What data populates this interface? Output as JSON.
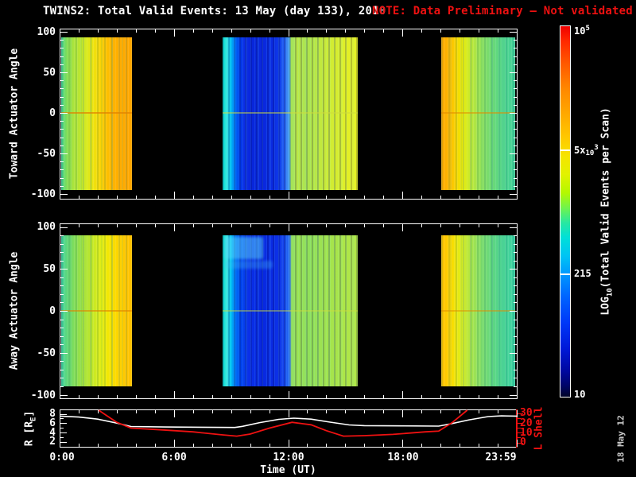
{
  "title": {
    "main": "TWINS2: Total Valid Events: 13 May (day 133), 2010",
    "note": "NOTE: Data Preliminary – Not validated",
    "note_color": "#ee1111"
  },
  "xaxis": {
    "label": "Time (UT)",
    "ticks": [
      "0:00",
      "6:00",
      "12:00",
      "18:00",
      "23:59"
    ],
    "range_hours": [
      0,
      24
    ]
  },
  "panels": {
    "toward": {
      "ylabel": "Toward Actuator Angle",
      "yticks": [
        "100",
        "50",
        "0",
        "-50",
        "-100"
      ]
    },
    "away": {
      "ylabel": "Away Actuator Angle",
      "yticks": [
        "100",
        "50",
        "0",
        "-50",
        "-100"
      ]
    },
    "orbit": {
      "left_label_pre": "R [R",
      "left_label_sub": "E",
      "left_label_post": "]",
      "left_ticks": [
        "8",
        "6",
        "4",
        "2"
      ],
      "right_label": "L Shell",
      "right_ticks": [
        "30",
        "20",
        "10",
        "0"
      ],
      "right_color": "#ee1111"
    }
  },
  "colorbar": {
    "label_pre": "LOG",
    "label_sub": "10",
    "label_post": "(Total Valid Events per Scan)",
    "tick_top_base": "10",
    "tick_top_sup": "5",
    "tick_upper_pre": "5x",
    "tick_upper_small": "10",
    "tick_upper_sup": "3",
    "tick_lower": "215",
    "tick_bottom": "10",
    "value_ticks": [
      100000,
      5000,
      215,
      10
    ],
    "dash_fracs": [
      0.333,
      0.667
    ],
    "gradient": [
      {
        "p": 0,
        "c": "#f00000"
      },
      {
        "p": 4,
        "c": "#ff2800"
      },
      {
        "p": 10,
        "c": "#ff5800"
      },
      {
        "p": 17,
        "c": "#ff8800"
      },
      {
        "p": 24,
        "c": "#ffaa00"
      },
      {
        "p": 30,
        "c": "#ffc800"
      },
      {
        "p": 35,
        "c": "#f6e400"
      },
      {
        "p": 40,
        "c": "#e2f200"
      },
      {
        "p": 45,
        "c": "#b4f800"
      },
      {
        "p": 49,
        "c": "#70f44c"
      },
      {
        "p": 53,
        "c": "#28e8a0"
      },
      {
        "p": 57,
        "c": "#00e0d8"
      },
      {
        "p": 62,
        "c": "#00c4f4"
      },
      {
        "p": 67,
        "c": "#0098ff"
      },
      {
        "p": 73,
        "c": "#0064ff"
      },
      {
        "p": 80,
        "c": "#0038f8"
      },
      {
        "p": 87,
        "c": "#0018d8"
      },
      {
        "p": 93,
        "c": "#0008a0"
      },
      {
        "p": 97,
        "c": "#000468"
      },
      {
        "p": 100,
        "c": "#000428"
      }
    ]
  },
  "datestamp": "18 May 12",
  "chart_data": [
    {
      "type": "heatmap",
      "panel": "toward",
      "ylabel": "Toward Actuator Angle",
      "y_range": [
        -100,
        100
      ],
      "data_y_range": [
        -90,
        90
      ],
      "x_unit": "hours UT",
      "blocks": [
        {
          "t_start": 0.1,
          "t_end": 3.8,
          "texture": "warm",
          "zero_color": "rgba(225,130,0,0.7)",
          "gradient": [
            {
              "p": 0,
              "c": "#3ed49c"
            },
            {
              "p": 4,
              "c": "#66da6e"
            },
            {
              "p": 10,
              "c": "#8ee04e"
            },
            {
              "p": 18,
              "c": "#ace43a"
            },
            {
              "p": 28,
              "c": "#bfe72e"
            },
            {
              "p": 36,
              "c": "#d9ea1e"
            },
            {
              "p": 44,
              "c": "#ece512"
            },
            {
              "p": 52,
              "c": "#f6da06"
            },
            {
              "p": 60,
              "c": "#fcc900"
            },
            {
              "p": 70,
              "c": "#ffb800"
            },
            {
              "p": 82,
              "c": "#ffac00"
            },
            {
              "p": 100,
              "c": "#ffa600"
            }
          ]
        },
        {
          "t_start": 8.55,
          "t_end": 15.65,
          "texture": "cold",
          "zero_color": "rgba(205,220,60,0.5)",
          "gradient": [
            {
              "p": 0,
              "c": "#00e6d4"
            },
            {
              "p": 3,
              "c": "#3ae4e0"
            },
            {
              "p": 6,
              "c": "#00c2f2"
            },
            {
              "p": 9,
              "c": "#0076f8"
            },
            {
              "p": 12,
              "c": "#0044ee"
            },
            {
              "p": 16,
              "c": "#0b2ce4"
            },
            {
              "p": 22,
              "c": "#0826da"
            },
            {
              "p": 30,
              "c": "#0a28de"
            },
            {
              "p": 38,
              "c": "#0a2ce2"
            },
            {
              "p": 43,
              "c": "#1240ec"
            },
            {
              "p": 47,
              "c": "#2f72f4"
            },
            {
              "p": 49.5,
              "c": "#57b4f0"
            },
            {
              "p": 50.5,
              "c": "#a2e258"
            },
            {
              "p": 55,
              "c": "#bce846"
            },
            {
              "p": 62,
              "c": "#ace44e"
            },
            {
              "p": 70,
              "c": "#bce842"
            },
            {
              "p": 78,
              "c": "#cdeb36"
            },
            {
              "p": 86,
              "c": "#d8ed2e"
            },
            {
              "p": 93,
              "c": "#e3ef26"
            },
            {
              "p": 100,
              "c": "#e8f022"
            }
          ]
        },
        {
          "t_start": 20.05,
          "t_end": 23.93,
          "texture": "warm",
          "zero_color": "rgba(225,140,0,0.55)",
          "gradient": [
            {
              "p": 0,
              "c": "#ffaa00"
            },
            {
              "p": 8,
              "c": "#ffb200"
            },
            {
              "p": 16,
              "c": "#fbc800"
            },
            {
              "p": 24,
              "c": "#f3e000"
            },
            {
              "p": 32,
              "c": "#dfec16"
            },
            {
              "p": 42,
              "c": "#bce83a"
            },
            {
              "p": 52,
              "c": "#98e254"
            },
            {
              "p": 62,
              "c": "#7cdc6a"
            },
            {
              "p": 74,
              "c": "#62d87e"
            },
            {
              "p": 86,
              "c": "#50d48e"
            },
            {
              "p": 100,
              "c": "#44d298"
            }
          ]
        }
      ]
    },
    {
      "type": "heatmap",
      "panel": "away",
      "ylabel": "Away Actuator Angle",
      "y_range": [
        -100,
        100
      ],
      "data_y_range": [
        -90,
        90
      ],
      "x_unit": "hours UT",
      "bands": [
        {
          "t_start": 8.7,
          "t_end": 10.7,
          "angle_top": 88,
          "angle_bot": 62,
          "color": "rgba(90,215,250,0.50)"
        },
        {
          "t_start": 8.7,
          "t_end": 11.2,
          "angle_top": 60,
          "angle_bot": 50,
          "color": "rgba(70,190,245,0.30)"
        }
      ],
      "blocks": [
        {
          "t_start": 0.1,
          "t_end": 3.8,
          "texture": "warm",
          "zero_color": "rgba(225,130,0,0.6)",
          "gradient": [
            {
              "p": 0,
              "c": "#3cd2a2"
            },
            {
              "p": 5,
              "c": "#54d688"
            },
            {
              "p": 12,
              "c": "#6cda6c"
            },
            {
              "p": 20,
              "c": "#86de54"
            },
            {
              "p": 30,
              "c": "#a2e240"
            },
            {
              "p": 42,
              "c": "#bee72c"
            },
            {
              "p": 54,
              "c": "#dcec16"
            },
            {
              "p": 66,
              "c": "#f2e804"
            },
            {
              "p": 78,
              "c": "#fcd800"
            },
            {
              "p": 90,
              "c": "#ffc800"
            },
            {
              "p": 100,
              "c": "#ffc000"
            }
          ]
        },
        {
          "t_start": 8.55,
          "t_end": 15.65,
          "texture": "cold",
          "zero_color": "rgba(205,220,60,0.45)",
          "gradient": [
            {
              "p": 0,
              "c": "#00e6d4"
            },
            {
              "p": 3,
              "c": "#40e4e0"
            },
            {
              "p": 6,
              "c": "#00c8f2"
            },
            {
              "p": 9,
              "c": "#007af8"
            },
            {
              "p": 13,
              "c": "#0048f0"
            },
            {
              "p": 19,
              "c": "#0a30e8"
            },
            {
              "p": 28,
              "c": "#0828e0"
            },
            {
              "p": 38,
              "c": "#0a2ce4"
            },
            {
              "p": 44,
              "c": "#1038ea"
            },
            {
              "p": 48,
              "c": "#2060f2"
            },
            {
              "p": 50,
              "c": "#4c9cf2"
            },
            {
              "p": 51,
              "c": "#94de5c"
            },
            {
              "p": 56,
              "c": "#9ce252"
            },
            {
              "p": 64,
              "c": "#90e05a"
            },
            {
              "p": 72,
              "c": "#9ce252"
            },
            {
              "p": 82,
              "c": "#a6e44c"
            },
            {
              "p": 92,
              "c": "#aee648"
            },
            {
              "p": 100,
              "c": "#b2e846"
            }
          ]
        },
        {
          "t_start": 20.05,
          "t_end": 23.93,
          "texture": "warm",
          "zero_color": "rgba(225,140,0,0.5)",
          "gradient": [
            {
              "p": 0,
              "c": "#ffc200"
            },
            {
              "p": 7,
              "c": "#ffca00"
            },
            {
              "p": 15,
              "c": "#f9dc00"
            },
            {
              "p": 24,
              "c": "#e4ec14"
            },
            {
              "p": 34,
              "c": "#c2e936"
            },
            {
              "p": 46,
              "c": "#9ae256"
            },
            {
              "p": 58,
              "c": "#78dc70"
            },
            {
              "p": 70,
              "c": "#5ed682"
            },
            {
              "p": 82,
              "c": "#4cd492"
            },
            {
              "p": 100,
              "c": "#3cd2a2"
            }
          ]
        }
      ]
    },
    {
      "type": "line",
      "panel": "orbit",
      "x_range_hours": [
        0,
        24
      ],
      "left_axis": {
        "label": "R [RE]",
        "ticks": [
          2,
          4,
          6,
          8
        ],
        "color": "#ffffff"
      },
      "right_axis": {
        "label": "L Shell",
        "ticks": [
          0,
          10,
          20,
          30
        ],
        "color": "#ee1111"
      },
      "series": [
        {
          "name": "R [RE]",
          "color": "#ffffff",
          "axis": "left",
          "points": [
            [
              0,
              7.5
            ],
            [
              1,
              7.3
            ],
            [
              2,
              6.85
            ],
            [
              3,
              6.0
            ],
            [
              3.75,
              5.25
            ],
            [
              5.5,
              5.15
            ],
            [
              7.5,
              5.1
            ],
            [
              9.2,
              5.05
            ],
            [
              9.6,
              5.3
            ],
            [
              10.5,
              6.1
            ],
            [
              11.5,
              6.8
            ],
            [
              12.3,
              7.05
            ],
            [
              13.2,
              6.85
            ],
            [
              14.2,
              6.2
            ],
            [
              15.2,
              5.6
            ],
            [
              16,
              5.45
            ],
            [
              18,
              5.4
            ],
            [
              19.9,
              5.35
            ],
            [
              20.5,
              5.8
            ],
            [
              21.5,
              6.7
            ],
            [
              22.5,
              7.4
            ],
            [
              23.2,
              7.55
            ],
            [
              24,
              7.5
            ]
          ]
        },
        {
          "name": "L Shell",
          "color": "#ee1111",
          "axis": "right",
          "points": [
            [
              2.05,
              34
            ],
            [
              2.5,
              27
            ],
            [
              3.0,
              20.5
            ],
            [
              3.75,
              14.6
            ],
            [
              5,
              13.2
            ],
            [
              7,
              10.8
            ],
            [
              8.5,
              7.8
            ],
            [
              9.3,
              6.4
            ],
            [
              10,
              8.5
            ],
            [
              11,
              14.5
            ],
            [
              12.2,
              20.5
            ],
            [
              13.2,
              18
            ],
            [
              14,
              12
            ],
            [
              14.9,
              6.4
            ],
            [
              16,
              6.9
            ],
            [
              17.5,
              8.2
            ],
            [
              19.2,
              10.8
            ],
            [
              19.9,
              11.5
            ],
            [
              20.6,
              20
            ],
            [
              21.4,
              34
            ]
          ]
        }
      ]
    }
  ]
}
